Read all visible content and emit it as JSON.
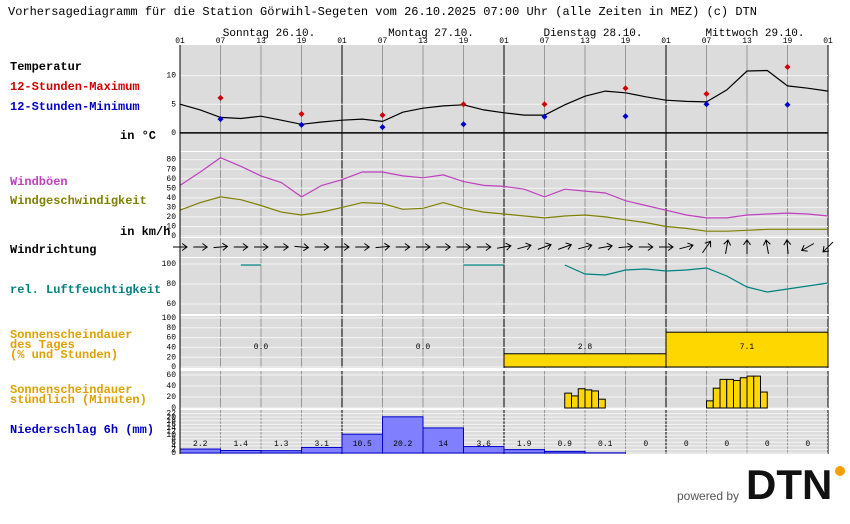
{
  "title": "Vorhersagediagramm für die Station Görwihl-Segeten vom 26.10.2025 07:00 Uhr (alle Zeiten in MEZ)   (c) DTN",
  "x_axis": {
    "xlim": [
      0,
      96
    ],
    "xticks": [
      {
        "value": 0,
        "label": "01"
      },
      {
        "value": 6,
        "label": "07"
      },
      {
        "value": 12,
        "label": "13"
      },
      {
        "value": 18,
        "label": "19"
      },
      {
        "value": 24,
        "label": "01"
      },
      {
        "value": 30,
        "label": "07"
      },
      {
        "value": 36,
        "label": "13"
      },
      {
        "value": 42,
        "label": "19"
      },
      {
        "value": 48,
        "label": "01"
      },
      {
        "value": 54,
        "label": "07"
      },
      {
        "value": 60,
        "label": "13"
      },
      {
        "value": 66,
        "label": "19"
      },
      {
        "value": 72,
        "label": "01"
      },
      {
        "value": 78,
        "label": "07"
      },
      {
        "value": 84,
        "label": "13"
      },
      {
        "value": 90,
        "label": "19"
      },
      {
        "value": 96,
        "label": "01"
      }
    ],
    "days": [
      "Sonntag 26.10.",
      "Montag 27.10.",
      "Dienstag 28.10.",
      "Mittwoch 29.10."
    ]
  },
  "chart_data": [
    {
      "type": "line",
      "unit_label": "in °C",
      "ylim": [
        -3,
        15
      ],
      "yticks": [
        0,
        5,
        10
      ],
      "series": [
        {
          "name": "Temperatur",
          "color": "#000000",
          "marker": "none",
          "x": [
            0,
            3,
            6,
            9,
            12,
            15,
            18,
            21,
            24,
            27,
            30,
            33,
            36,
            39,
            42,
            45,
            48,
            51,
            54,
            57,
            60,
            63,
            66,
            69,
            72,
            75,
            78,
            81,
            84,
            87,
            90,
            93,
            96
          ],
          "values": [
            5.0,
            4.0,
            2.7,
            2.5,
            2.9,
            2.2,
            1.5,
            1.9,
            2.2,
            2.4,
            2.0,
            3.6,
            4.3,
            4.7,
            4.9,
            4.0,
            3.5,
            3.1,
            3.1,
            4.9,
            6.4,
            7.3,
            7.0,
            6.3,
            5.7,
            5.5,
            5.4,
            7.5,
            10.8,
            10.9,
            8.2,
            7.8,
            7.3
          ]
        },
        {
          "name": "12-Stunden-Maximum",
          "color": "#d00000",
          "marker": "diamond",
          "x": [
            6,
            18,
            30,
            42,
            54,
            66,
            78,
            90
          ],
          "values": [
            6.1,
            3.3,
            3.1,
            5.0,
            5.0,
            7.8,
            6.8,
            11.5
          ]
        },
        {
          "name": "12-Stunden-Minimum",
          "color": "#0000c8",
          "marker": "diamond",
          "x": [
            6,
            18,
            30,
            42,
            54,
            66,
            78,
            90
          ],
          "values": [
            2.4,
            1.4,
            1.0,
            1.5,
            2.8,
            2.9,
            5.0,
            4.9
          ]
        }
      ]
    },
    {
      "type": "line",
      "unit_label": "in km/h",
      "ylim": [
        0,
        88
      ],
      "yticks": [
        0,
        10,
        20,
        30,
        40,
        50,
        60,
        70,
        80
      ],
      "series": [
        {
          "name": "Windböen",
          "color": "#c040c0",
          "marker": "none",
          "x": [
            0,
            3,
            6,
            9,
            12,
            15,
            18,
            21,
            24,
            27,
            30,
            33,
            36,
            39,
            42,
            45,
            48,
            51,
            54,
            57,
            60,
            63,
            66,
            69,
            72,
            75,
            78,
            81,
            84,
            87,
            90,
            93,
            96
          ],
          "values": [
            53,
            67,
            82,
            73,
            63,
            56,
            41,
            53,
            59,
            67,
            67,
            63,
            61,
            64,
            57,
            53,
            52,
            49,
            41,
            49,
            47,
            45,
            37,
            32,
            27,
            22,
            19,
            19,
            22,
            23,
            24,
            23,
            21
          ]
        },
        {
          "name": "Windgeschwindigkeit",
          "color": "#808000",
          "marker": "none",
          "x": [
            0,
            3,
            6,
            9,
            12,
            15,
            18,
            21,
            24,
            27,
            30,
            33,
            36,
            39,
            42,
            45,
            48,
            51,
            54,
            57,
            60,
            63,
            66,
            69,
            72,
            75,
            78,
            81,
            84,
            87,
            90,
            93,
            96
          ],
          "values": [
            27,
            35,
            41,
            38,
            32,
            25,
            22,
            25,
            30,
            35,
            34,
            28,
            29,
            35,
            29,
            25,
            23,
            21,
            19,
            21,
            22,
            20,
            17,
            14,
            10,
            8,
            5,
            5,
            6,
            7,
            7,
            7,
            7
          ]
        }
      ]
    },
    {
      "type": "arrows",
      "label": "Windrichtung",
      "x": [
        0,
        3,
        6,
        9,
        12,
        15,
        18,
        21,
        24,
        27,
        30,
        33,
        36,
        39,
        42,
        45,
        48,
        51,
        54,
        57,
        60,
        63,
        66,
        69,
        72,
        75,
        78,
        81,
        84,
        87,
        90,
        93,
        96
      ],
      "values": [
        270,
        270,
        265,
        270,
        270,
        270,
        275,
        270,
        270,
        270,
        265,
        270,
        270,
        270,
        270,
        270,
        260,
        255,
        250,
        250,
        255,
        260,
        265,
        270,
        270,
        255,
        215,
        190,
        180,
        170,
        175,
        60,
        45
      ]
    },
    {
      "type": "line",
      "ylim": [
        50,
        105
      ],
      "yticks": [
        60,
        80,
        100
      ],
      "series": [
        {
          "name": "rel. Luftfeuchtigkeit",
          "color": "#008080",
          "marker": "none",
          "x": [
            0,
            3,
            6,
            9,
            12,
            15,
            18,
            21,
            24,
            27,
            30,
            33,
            36,
            39,
            42,
            45,
            48,
            51,
            54,
            57,
            60,
            63,
            66,
            69,
            72,
            75,
            78,
            81,
            84,
            87,
            90,
            93,
            96
          ],
          "values": [
            null,
            null,
            null,
            99,
            99,
            null,
            null,
            null,
            null,
            null,
            null,
            null,
            null,
            null,
            99,
            99,
            99,
            null,
            null,
            99,
            90,
            89,
            94,
            95,
            93,
            94,
            96,
            88,
            77,
            72,
            75,
            78,
            81
          ]
        }
      ]
    },
    {
      "type": "daybar",
      "label": [
        "Sonnenscheindauer",
        "des Tages",
        "(% und Stunden)"
      ],
      "ylim": [
        0,
        100
      ],
      "yticks": [
        0,
        20,
        40,
        60,
        80,
        100
      ],
      "color": "#ffd700",
      "x": [
        0,
        24,
        48,
        72
      ],
      "percent": [
        0,
        0,
        27,
        71
      ],
      "hours": [
        0,
        0,
        2.8,
        7.1
      ],
      "hours_labels": [
        "0.0",
        "0.0",
        "2.8",
        "7.1"
      ]
    },
    {
      "type": "bar",
      "label": [
        "Sonnenscheindauer",
        "stündlich (Minuten)"
      ],
      "ylim": [
        0,
        60
      ],
      "yticks": [
        0,
        20,
        40,
        60
      ],
      "color": "#ffd700",
      "x": [
        57,
        58,
        59,
        60,
        61,
        62,
        78,
        79,
        80,
        81,
        82,
        83,
        84,
        85,
        86
      ],
      "values": [
        27,
        22,
        35,
        33,
        31,
        16,
        13,
        36,
        52,
        52,
        50,
        55,
        58,
        58,
        29
      ]
    },
    {
      "type": "bar",
      "label": [
        "Niederschlag 6h (mm)"
      ],
      "ylim": [
        0,
        24
      ],
      "yticks": [
        0,
        2,
        4,
        6,
        8,
        10,
        12,
        14,
        16,
        18,
        20,
        22
      ],
      "color": "#8080ff",
      "value_text": true,
      "x": [
        0,
        6,
        12,
        18,
        24,
        30,
        36,
        42,
        48,
        54,
        60,
        66,
        72,
        78,
        84,
        90
      ],
      "values": [
        2.2,
        1.4,
        1.3,
        3.1,
        10.5,
        20.2,
        14,
        3.6,
        1.9,
        0.9,
        0.1,
        0,
        0,
        0,
        0,
        0
      ]
    }
  ],
  "footer": {
    "powered_by": "powered by",
    "logo": "DTN"
  }
}
